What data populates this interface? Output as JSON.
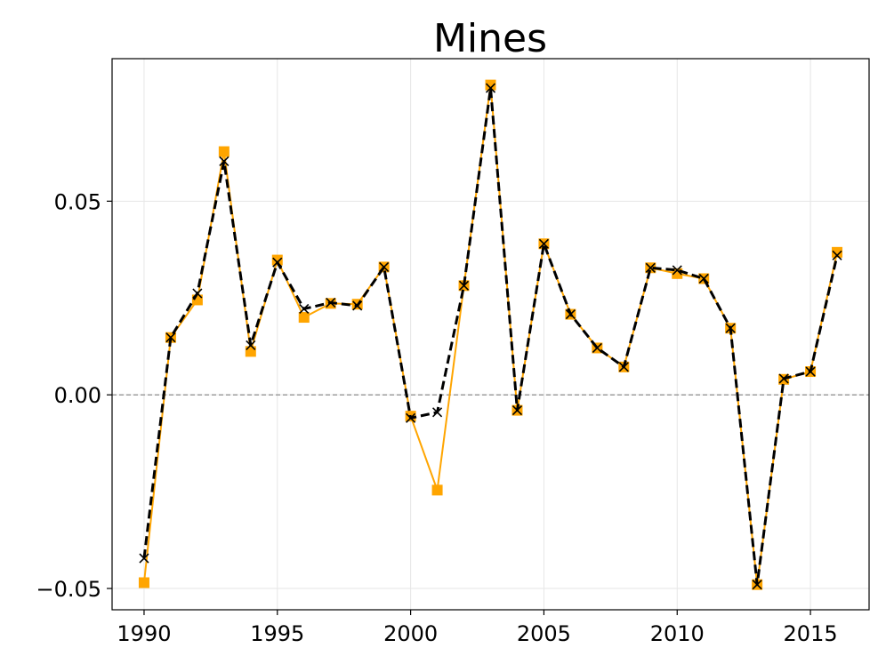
{
  "chart_data": {
    "type": "line",
    "title": "Mines",
    "xlabel": "",
    "ylabel": "",
    "xlim": [
      1988.8,
      2017.2
    ],
    "ylim": [
      -0.0555,
      0.0868
    ],
    "x_ticks": [
      1990,
      1995,
      2000,
      2005,
      2010,
      2015
    ],
    "x_tick_labels": [
      "1990",
      "1995",
      "2000",
      "2005",
      "2010",
      "2015"
    ],
    "y_ticks": [
      -0.05,
      0.0,
      0.05
    ],
    "y_tick_labels": [
      "−0.05",
      "0.00",
      "0.05"
    ],
    "grid": true,
    "zero_reference_line": 0.0,
    "x": [
      1990,
      1991,
      1992,
      1993,
      1994,
      1995,
      1996,
      1997,
      1998,
      1999,
      2000,
      2001,
      2002,
      2003,
      2004,
      2005,
      2006,
      2007,
      2008,
      2009,
      2010,
      2011,
      2012,
      2013,
      2014,
      2015,
      2016
    ],
    "series": [
      {
        "color": "#ffa500",
        "line_style": "solid",
        "marker": "square",
        "values": [
          -0.0485,
          0.0148,
          0.0245,
          0.0628,
          0.0112,
          0.0348,
          0.02,
          0.0236,
          0.0234,
          0.033,
          -0.0055,
          -0.0246,
          0.0282,
          0.08,
          -0.004,
          0.039,
          0.0208,
          0.0121,
          0.0072,
          0.0328,
          0.0313,
          0.03,
          0.0172,
          -0.049,
          0.004,
          0.006,
          0.0368
        ]
      },
      {
        "color": "#000000",
        "line_style": "dashed",
        "marker": "x",
        "values": [
          -0.0422,
          0.0148,
          0.0262,
          0.0603,
          0.0128,
          0.0342,
          0.0222,
          0.0238,
          0.023,
          0.033,
          -0.006,
          -0.0045,
          0.0282,
          0.0792,
          -0.004,
          0.039,
          0.0208,
          0.0121,
          0.0072,
          0.0328,
          0.0322,
          0.03,
          0.0172,
          -0.049,
          0.0042,
          0.006,
          0.036
        ]
      }
    ],
    "colors": {
      "grid": "#e6e6e6",
      "zero_line": "#808080",
      "axes": "#000000"
    }
  }
}
